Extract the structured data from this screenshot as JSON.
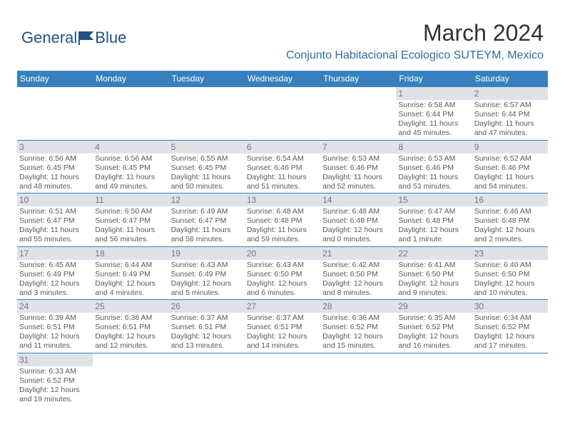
{
  "logo": {
    "text1": "General",
    "text2": "Blue",
    "color": "#23527f"
  },
  "title": "March 2024",
  "location": "Conjunto Habitacional Ecologico SUTEYM, Mexico",
  "colors": {
    "header_bg": "#3880bd",
    "header_fg": "#ffffff",
    "daynum_bg": "#dfe3e7",
    "daynum_fg": "#6a7883",
    "border": "#3880bd",
    "text": "#5a5a5a",
    "title": "#333333",
    "location_fg": "#2f6ba3"
  },
  "dayNames": [
    "Sunday",
    "Monday",
    "Tuesday",
    "Wednesday",
    "Thursday",
    "Friday",
    "Saturday"
  ],
  "weeks": [
    [
      {
        "n": ""
      },
      {
        "n": ""
      },
      {
        "n": ""
      },
      {
        "n": ""
      },
      {
        "n": ""
      },
      {
        "n": "1",
        "sr": "6:58 AM",
        "ss": "6:44 PM",
        "dl": "11 hours and 45 minutes."
      },
      {
        "n": "2",
        "sr": "6:57 AM",
        "ss": "6:44 PM",
        "dl": "11 hours and 47 minutes."
      }
    ],
    [
      {
        "n": "3",
        "sr": "6:56 AM",
        "ss": "6:45 PM",
        "dl": "11 hours and 48 minutes."
      },
      {
        "n": "4",
        "sr": "6:56 AM",
        "ss": "6:45 PM",
        "dl": "11 hours and 49 minutes."
      },
      {
        "n": "5",
        "sr": "6:55 AM",
        "ss": "6:45 PM",
        "dl": "11 hours and 50 minutes."
      },
      {
        "n": "6",
        "sr": "6:54 AM",
        "ss": "6:46 PM",
        "dl": "11 hours and 51 minutes."
      },
      {
        "n": "7",
        "sr": "6:53 AM",
        "ss": "6:46 PM",
        "dl": "11 hours and 52 minutes."
      },
      {
        "n": "8",
        "sr": "6:53 AM",
        "ss": "6:46 PM",
        "dl": "11 hours and 53 minutes."
      },
      {
        "n": "9",
        "sr": "6:52 AM",
        "ss": "6:46 PM",
        "dl": "11 hours and 54 minutes."
      }
    ],
    [
      {
        "n": "10",
        "sr": "6:51 AM",
        "ss": "6:47 PM",
        "dl": "11 hours and 55 minutes."
      },
      {
        "n": "11",
        "sr": "6:50 AM",
        "ss": "6:47 PM",
        "dl": "11 hours and 56 minutes."
      },
      {
        "n": "12",
        "sr": "6:49 AM",
        "ss": "6:47 PM",
        "dl": "11 hours and 58 minutes."
      },
      {
        "n": "13",
        "sr": "6:48 AM",
        "ss": "6:48 PM",
        "dl": "11 hours and 59 minutes."
      },
      {
        "n": "14",
        "sr": "6:48 AM",
        "ss": "6:48 PM",
        "dl": "12 hours and 0 minutes."
      },
      {
        "n": "15",
        "sr": "6:47 AM",
        "ss": "6:48 PM",
        "dl": "12 hours and 1 minute."
      },
      {
        "n": "16",
        "sr": "6:46 AM",
        "ss": "6:48 PM",
        "dl": "12 hours and 2 minutes."
      }
    ],
    [
      {
        "n": "17",
        "sr": "6:45 AM",
        "ss": "6:49 PM",
        "dl": "12 hours and 3 minutes."
      },
      {
        "n": "18",
        "sr": "6:44 AM",
        "ss": "6:49 PM",
        "dl": "12 hours and 4 minutes."
      },
      {
        "n": "19",
        "sr": "6:43 AM",
        "ss": "6:49 PM",
        "dl": "12 hours and 5 minutes."
      },
      {
        "n": "20",
        "sr": "6:43 AM",
        "ss": "6:50 PM",
        "dl": "12 hours and 6 minutes."
      },
      {
        "n": "21",
        "sr": "6:42 AM",
        "ss": "6:50 PM",
        "dl": "12 hours and 8 minutes."
      },
      {
        "n": "22",
        "sr": "6:41 AM",
        "ss": "6:50 PM",
        "dl": "12 hours and 9 minutes."
      },
      {
        "n": "23",
        "sr": "6:40 AM",
        "ss": "6:50 PM",
        "dl": "12 hours and 10 minutes."
      }
    ],
    [
      {
        "n": "24",
        "sr": "6:39 AM",
        "ss": "6:51 PM",
        "dl": "12 hours and 11 minutes."
      },
      {
        "n": "25",
        "sr": "6:38 AM",
        "ss": "6:51 PM",
        "dl": "12 hours and 12 minutes."
      },
      {
        "n": "26",
        "sr": "6:37 AM",
        "ss": "6:51 PM",
        "dl": "12 hours and 13 minutes."
      },
      {
        "n": "27",
        "sr": "6:37 AM",
        "ss": "6:51 PM",
        "dl": "12 hours and 14 minutes."
      },
      {
        "n": "28",
        "sr": "6:36 AM",
        "ss": "6:52 PM",
        "dl": "12 hours and 15 minutes."
      },
      {
        "n": "29",
        "sr": "6:35 AM",
        "ss": "6:52 PM",
        "dl": "12 hours and 16 minutes."
      },
      {
        "n": "30",
        "sr": "6:34 AM",
        "ss": "6:52 PM",
        "dl": "12 hours and 17 minutes."
      }
    ],
    [
      {
        "n": "31",
        "sr": "6:33 AM",
        "ss": "6:52 PM",
        "dl": "12 hours and 19 minutes."
      },
      {
        "n": ""
      },
      {
        "n": ""
      },
      {
        "n": ""
      },
      {
        "n": ""
      },
      {
        "n": ""
      },
      {
        "n": ""
      }
    ]
  ]
}
